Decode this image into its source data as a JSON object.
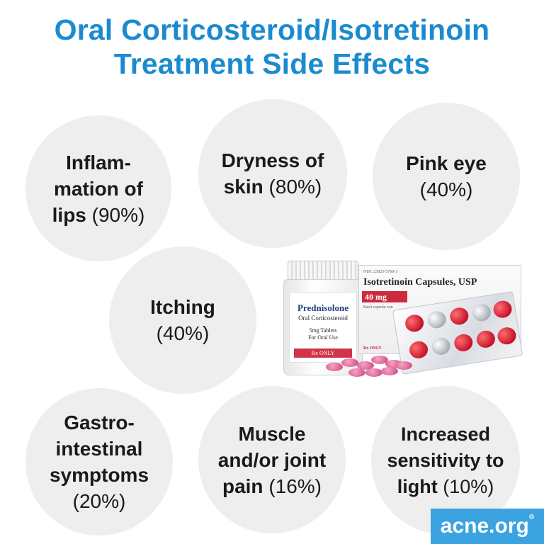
{
  "title": {
    "line1": "Oral Corticosteroid/Isotretinoin",
    "line2": "Treatment Side Effects"
  },
  "effects": [
    {
      "name_lines": [
        "Inflam-",
        "mation of"
      ],
      "name_last": "lips",
      "percent": "(90%)"
    },
    {
      "name_lines": [
        "Dryness of"
      ],
      "name_last": "skin",
      "percent": "(80%)"
    },
    {
      "name_lines": [],
      "name_last": "Pink eye",
      "percent": "(40%)"
    },
    {
      "name_lines": [],
      "name_last": "Itching",
      "percent": "(40%)"
    },
    {
      "name_lines": [
        "Gastro-",
        "intestinal",
        "symptoms"
      ],
      "name_last": "",
      "percent": "(20%)"
    },
    {
      "name_lines": [
        "Muscle",
        "and/or joint"
      ],
      "name_last": "pain",
      "percent": "(16%)"
    },
    {
      "name_lines": [
        "Increased",
        "sensitivity to"
      ],
      "name_last": "light",
      "percent": "(10%)"
    }
  ],
  "photo": {
    "bottle": {
      "name": "Prednisolone",
      "subtitle": "Oral Corticosteroid",
      "tablets": "5mg Tablets",
      "use": "For Oral Use",
      "rx": "Rx ONLY"
    },
    "box": {
      "ndc": "NDC 23825-5760-3",
      "name": "Isotretinoin Capsules, USP",
      "dose": "40 mg",
      "each": "Each capsule con",
      "rx": "Rx ONLY"
    }
  },
  "brand": {
    "name": "acne.org",
    "mark": "®"
  },
  "colors": {
    "title": "#1b8bd0",
    "bubble": "#eeeeee",
    "brand_bg": "#3aa3e0"
  }
}
